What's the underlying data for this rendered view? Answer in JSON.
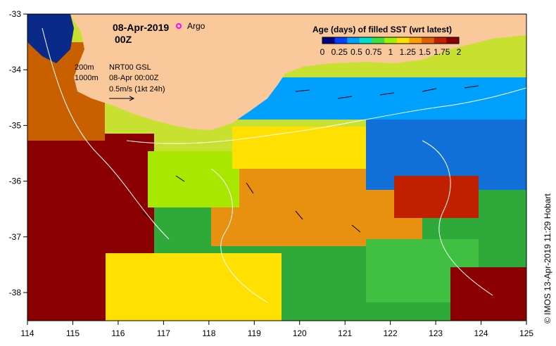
{
  "header": {
    "date": "08-Apr-2019",
    "hour": "00Z",
    "argo_label": "Argo"
  },
  "colorbar": {
    "title": "Age (days) of filled SST (wrt latest)",
    "ticks": [
      "0",
      "0.25",
      "0.5",
      "0.75",
      "1",
      "1.25",
      "1.5",
      "1.75",
      "2"
    ],
    "colors": [
      "#00007f",
      "#0040ff",
      "#00a0ff",
      "#00e0d0",
      "#40e040",
      "#a0f000",
      "#ffe000",
      "#ffa000",
      "#e06000",
      "#c02000",
      "#8b0000"
    ]
  },
  "legend": {
    "contour_200": "200m",
    "contour_1000": "1000m",
    "product": "NRT00 GSL",
    "time": "08-Apr 00:00Z",
    "vector_scale": "0.5m/s (1kt 24h)"
  },
  "axes": {
    "x_ticks": [
      "114",
      "115",
      "116",
      "117",
      "118",
      "119",
      "120",
      "121",
      "122",
      "123",
      "124",
      "125"
    ],
    "y_ticks": [
      "-33",
      "-34",
      "-35",
      "-36",
      "-37",
      "-38"
    ]
  },
  "credit": "© IMOS 13-Apr-2019 11:29 Hobart",
  "colors": {
    "land": "#f9c89b",
    "argo_marker": "#ff00ff",
    "contour": "#ffffff"
  }
}
